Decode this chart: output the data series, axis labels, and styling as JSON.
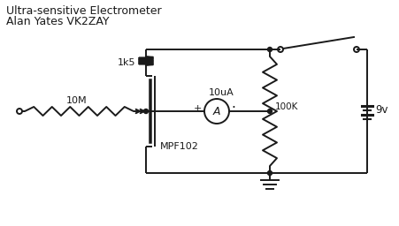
{
  "title_line1": "Ultra-sensitive Electrometer",
  "title_line2": "Alan Yates VK2ZAY",
  "label_10M": "10M",
  "label_1k5": "1k5",
  "label_10uA": "10uA",
  "label_100K": "100K",
  "label_9v": "9v",
  "label_MPF102": "MPF102",
  "bg_color": "#ffffff",
  "line_color": "#1a1a1a",
  "figsize": [
    4.51,
    2.56
  ],
  "dpi": 100
}
